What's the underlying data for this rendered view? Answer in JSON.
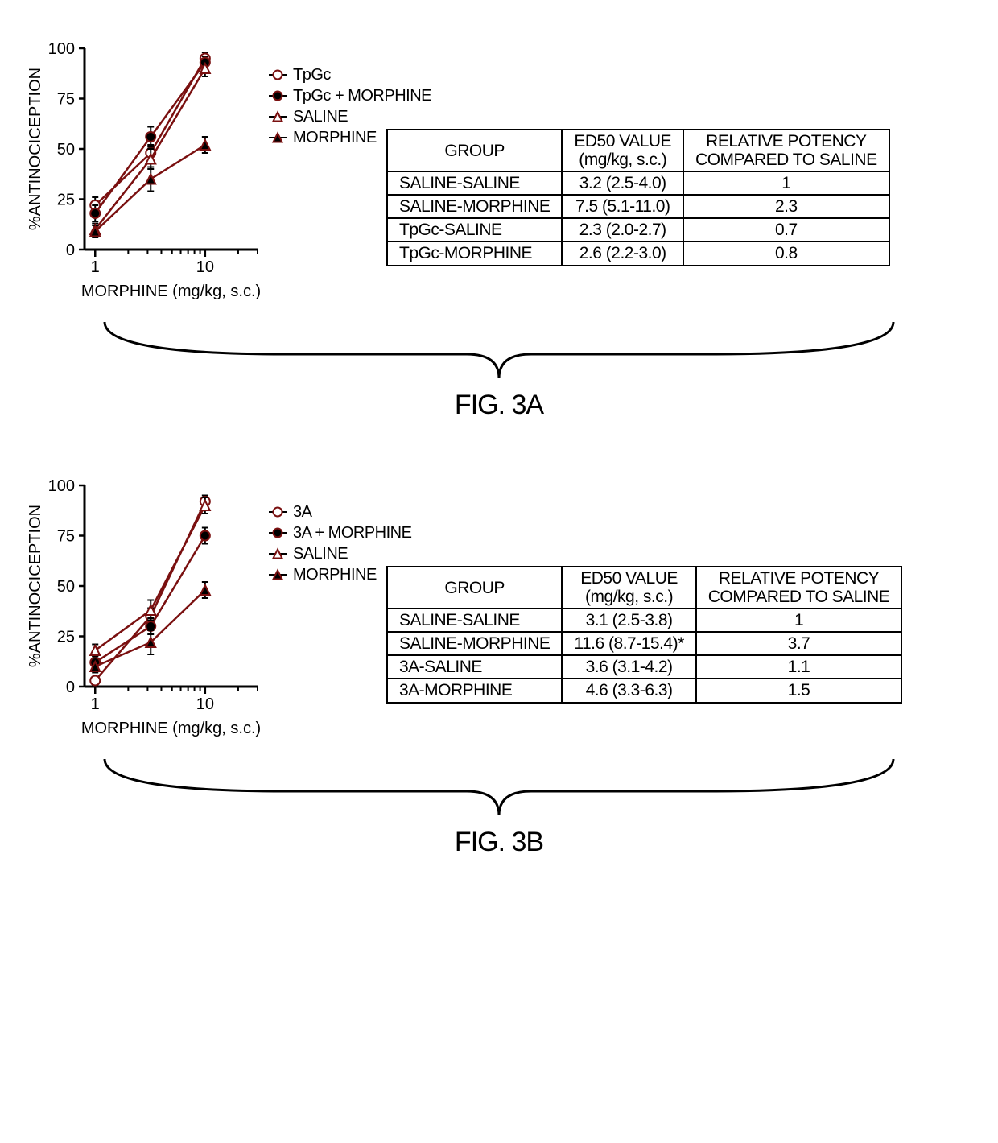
{
  "figA": {
    "label": "FIG. 3A",
    "chart": {
      "type": "line",
      "xlabel": "MORPHINE (mg/kg, s.c.)",
      "ylabel": "%ANTINOCICEPTION",
      "ylim": [
        0,
        100
      ],
      "yticks": [
        0,
        25,
        50,
        75,
        100
      ],
      "xscale": "log",
      "xlim": [
        0.8,
        30
      ],
      "xtick_majors": [
        1,
        10
      ],
      "line_color": "#7a1010",
      "line_width": 2.5,
      "background_color": "#ffffff",
      "axis_color": "#000000",
      "label_fontsize": 20,
      "tick_fontsize": 20,
      "series": [
        {
          "name": "TpGc",
          "marker": "circle-open",
          "color": "#7a1010",
          "fill": "#ffffff",
          "points": [
            {
              "x": 1,
              "y": 22,
              "err": 4
            },
            {
              "x": 3.2,
              "y": 48,
              "err": 4
            },
            {
              "x": 10,
              "y": 95,
              "err": 3
            }
          ]
        },
        {
          "name": "TpGc + MORPHINE",
          "marker": "circle-filled",
          "color": "#7a1010",
          "fill": "#000000",
          "points": [
            {
              "x": 1,
              "y": 18,
              "err": 4
            },
            {
              "x": 3.2,
              "y": 56,
              "err": 5
            },
            {
              "x": 10,
              "y": 93,
              "err": 3
            }
          ]
        },
        {
          "name": "SALINE",
          "marker": "triangle-open",
          "color": "#7a1010",
          "fill": "#ffffff",
          "points": [
            {
              "x": 1,
              "y": 10,
              "err": 3
            },
            {
              "x": 3.2,
              "y": 45,
              "err": 5
            },
            {
              "x": 10,
              "y": 90,
              "err": 4
            }
          ]
        },
        {
          "name": "MORPHINE",
          "marker": "triangle-filled",
          "color": "#7a1010",
          "fill": "#000000",
          "points": [
            {
              "x": 1,
              "y": 9,
              "err": 3
            },
            {
              "x": 3.2,
              "y": 35,
              "err": 6
            },
            {
              "x": 10,
              "y": 52,
              "err": 4
            }
          ]
        }
      ]
    },
    "table": {
      "columns": [
        "GROUP",
        "ED50 VALUE\n(mg/kg, s.c.)",
        "RELATIVE POTENCY\nCOMPARED TO SALINE"
      ],
      "rows": [
        [
          "SALINE-SALINE",
          "3.2 (2.5-4.0)",
          "1"
        ],
        [
          "SALINE-MORPHINE",
          "7.5 (5.1-11.0)",
          "2.3"
        ],
        [
          "TpGc-SALINE",
          "2.3 (2.0-2.7)",
          "0.7"
        ],
        [
          "TpGc-MORPHINE",
          "2.6 (2.2-3.0)",
          "0.8"
        ]
      ]
    }
  },
  "figB": {
    "label": "FIG. 3B",
    "chart": {
      "type": "line",
      "xlabel": "MORPHINE (mg/kg, s.c.)",
      "ylabel": "%ANTINOCICEPTION",
      "ylim": [
        0,
        100
      ],
      "yticks": [
        0,
        25,
        50,
        75,
        100
      ],
      "xscale": "log",
      "xlim": [
        0.8,
        30
      ],
      "xtick_majors": [
        1,
        10
      ],
      "line_color": "#7a1010",
      "line_width": 2.5,
      "background_color": "#ffffff",
      "axis_color": "#000000",
      "label_fontsize": 20,
      "tick_fontsize": 20,
      "series": [
        {
          "name": "3A",
          "marker": "circle-open",
          "color": "#7a1010",
          "fill": "#ffffff",
          "points": [
            {
              "x": 1,
              "y": 3,
              "err": 2
            },
            {
              "x": 3.2,
              "y": 35,
              "err": 4
            },
            {
              "x": 10,
              "y": 92,
              "err": 3
            }
          ]
        },
        {
          "name": "3A + MORPHINE",
          "marker": "circle-filled",
          "color": "#7a1010",
          "fill": "#000000",
          "points": [
            {
              "x": 1,
              "y": 12,
              "err": 3
            },
            {
              "x": 3.2,
              "y": 30,
              "err": 4
            },
            {
              "x": 10,
              "y": 75,
              "err": 4
            }
          ]
        },
        {
          "name": "SALINE",
          "marker": "triangle-open",
          "color": "#7a1010",
          "fill": "#ffffff",
          "points": [
            {
              "x": 1,
              "y": 18,
              "err": 3
            },
            {
              "x": 3.2,
              "y": 38,
              "err": 5
            },
            {
              "x": 10,
              "y": 90,
              "err": 4
            }
          ]
        },
        {
          "name": "MORPHINE",
          "marker": "triangle-filled",
          "color": "#7a1010",
          "fill": "#000000",
          "points": [
            {
              "x": 1,
              "y": 10,
              "err": 3
            },
            {
              "x": 3.2,
              "y": 22,
              "err": 6
            },
            {
              "x": 10,
              "y": 48,
              "err": 4
            }
          ]
        }
      ]
    },
    "table": {
      "columns": [
        "GROUP",
        "ED50 VALUE\n(mg/kg, s.c.)",
        "RELATIVE POTENCY\nCOMPARED TO SALINE"
      ],
      "rows": [
        [
          "SALINE-SALINE",
          "3.1 (2.5-3.8)",
          "1"
        ],
        [
          "SALINE-MORPHINE",
          "11.6 (8.7-15.4)*",
          "3.7"
        ],
        [
          "3A-SALINE",
          "3.6 (3.1-4.2)",
          "1.1"
        ],
        [
          "3A-MORPHINE",
          "4.6 (3.3-6.3)",
          "1.5"
        ]
      ]
    }
  }
}
